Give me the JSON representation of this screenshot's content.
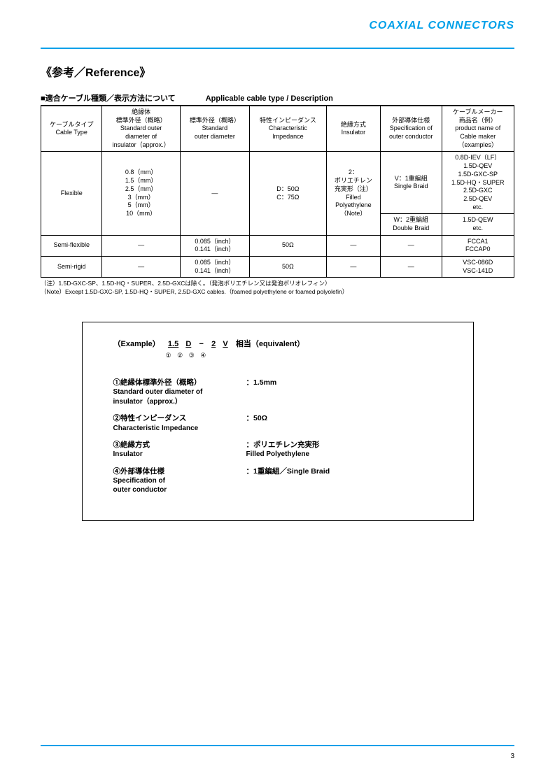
{
  "header": {
    "title": "COAXIAL CONNECTORS"
  },
  "section": {
    "heading": "《参考／Reference》",
    "subheading_jp": "■適合ケーブル種類／表示方法について",
    "subheading_en": "Applicable cable type / Description"
  },
  "table": {
    "headers": {
      "c1": "ケーブルタイプ\nCable Type",
      "c2": "絶縁体\n標準外径（概略）\nStandard outer\ndiameter of\ninsulator（approx.）",
      "c3": "標準外径（概略）\nStandard\nouter diameter",
      "c4": "特性インピーダンス\nCharacteristic\nImpedance",
      "c5": "絶縁方式\nInsulator",
      "c6": "外部導体仕様\nSpecification of\nouter conductor",
      "c7": "ケーブルメーカー\n商品名（例）\nproduct name of\nCable maker\n（examples）"
    },
    "flexible": {
      "type": "Flexible",
      "insulator_od": "0.8（mm）\n1.5（mm）\n2.5（mm）\n3（mm）\n5（mm）\n10（mm）",
      "std_od": "—",
      "impedance": "D：50Ω\nC：75Ω",
      "insulator": "2：\nポリエチレン\n充実形（注）\nFilled\nPolyethylene\n（Note）",
      "conductor1": "V：1重編組\nSingle Braid",
      "products1": "0.8D-IEV（LF）\n1.5D-QEV\n1.5D-GXC-SP\n1.5D-HQ・SUPER\n2.5D-GXC\n2.5D-QEV\netc.",
      "conductor2": "W：2重編組\nDouble Braid",
      "products2": "1.5D-QEW\netc."
    },
    "semiflex": {
      "type": "Semi-flexible",
      "insulator_od": "—",
      "std_od": "0.085（inch）\n0.141（inch）",
      "impedance": "50Ω",
      "insulator": "—",
      "conductor": "—",
      "products": "FCCA1\nFCCAP0"
    },
    "semirigid": {
      "type": "Semi-rigid",
      "insulator_od": "—",
      "std_od": "0.085（inch）\n0.141（inch）",
      "impedance": "50Ω",
      "insulator": "—",
      "conductor": "—",
      "products": "VSC-086D\nVSC-141D"
    }
  },
  "notes": {
    "jp": "（注）1.5D-GXC-SP、1.5D-HQ・SUPER、2.5D-GXCは除く。（発泡ポリエチレン又は発泡ポリオレフィン）",
    "en": "（Note）Except 1.5D-GXC-SP, 1.5D-HQ・SUPER, 2.5D-GXC cables.（foamed polyethylene or foamed polyolefin）"
  },
  "example": {
    "label": "（Example）",
    "p1": "1.5",
    "p2": "D",
    "dash": "−",
    "p3": "2",
    "p4": "V",
    "suffix": "相当（equivalent）",
    "nums": "①  ②        ③  ④",
    "items": [
      {
        "lbl_jp": "①絶縁体標準外径（概略）",
        "lbl_en": "Standard outer diameter of\ninsulator（approx.）",
        "val": "：1.5mm",
        "val_en": ""
      },
      {
        "lbl_jp": "②特性インピーダンス",
        "lbl_en": "Characteristic Impedance",
        "val": "：50Ω",
        "val_en": ""
      },
      {
        "lbl_jp": "③絶縁方式",
        "lbl_en": "Insulator",
        "val": "：ポリエチレン充実形",
        "val_en": "Filled Polyethylene"
      },
      {
        "lbl_jp": "④外部導体仕様",
        "lbl_en": "Specification of\nouter conductor",
        "val": "：1重編組／Single Braid",
        "val_en": ""
      }
    ]
  },
  "page_number": "3",
  "colors": {
    "accent": "#00a0e9",
    "text": "#000000",
    "bg": "#ffffff"
  }
}
